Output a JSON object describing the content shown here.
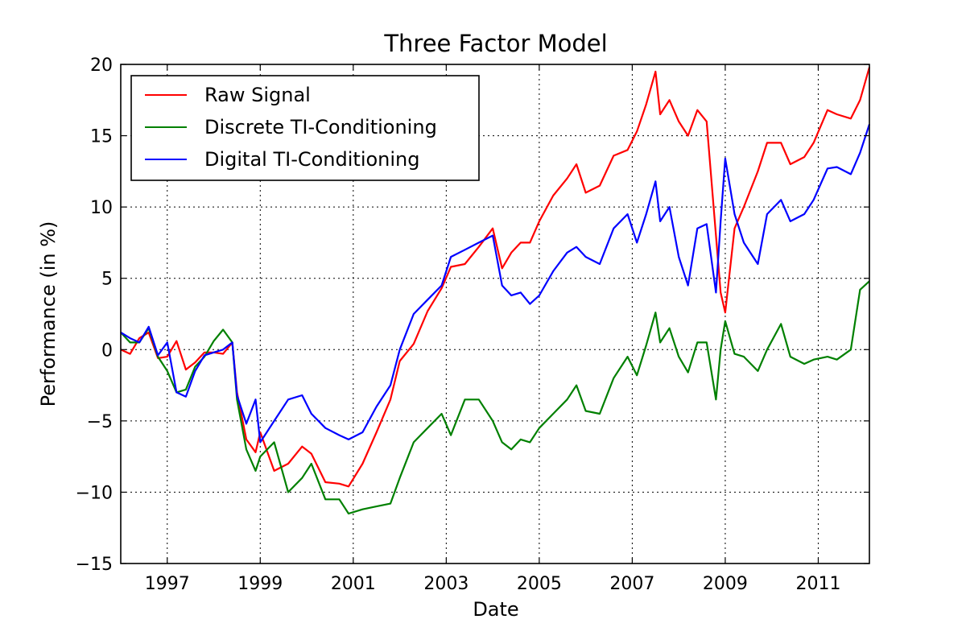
{
  "chart_data": {
    "type": "line",
    "title": "Three Factor Model",
    "xlabel": "Date",
    "ylabel": "Performance (in %)",
    "xlim": [
      1996.0,
      2012.1
    ],
    "ylim": [
      -15,
      20
    ],
    "xticks": [
      1997,
      1999,
      2001,
      2003,
      2005,
      2007,
      2009,
      2011
    ],
    "yticks": [
      -15,
      -10,
      -5,
      0,
      5,
      10,
      15,
      20
    ],
    "grid": true,
    "legend_position": "top-left",
    "x": [
      1996.0,
      1996.2,
      1996.4,
      1996.6,
      1996.8,
      1997.0,
      1997.2,
      1997.4,
      1997.6,
      1997.8,
      1998.0,
      1998.2,
      1998.4,
      1998.5,
      1998.7,
      1998.9,
      1999.0,
      1999.3,
      1999.6,
      1999.9,
      2000.1,
      2000.4,
      2000.7,
      2000.9,
      2001.2,
      2001.5,
      2001.8,
      2002.0,
      2002.3,
      2002.6,
      2002.9,
      2003.1,
      2003.4,
      2003.7,
      2004.0,
      2004.2,
      2004.4,
      2004.6,
      2004.8,
      2005.0,
      2005.3,
      2005.6,
      2005.8,
      2006.0,
      2006.3,
      2006.6,
      2006.9,
      2007.1,
      2007.3,
      2007.5,
      2007.6,
      2007.8,
      2008.0,
      2008.2,
      2008.4,
      2008.6,
      2008.8,
      2008.9,
      2009.0,
      2009.2,
      2009.4,
      2009.7,
      2009.9,
      2010.2,
      2010.4,
      2010.7,
      2010.9,
      2011.2,
      2011.4,
      2011.7,
      2011.9,
      2012.1
    ],
    "series": [
      {
        "name": "Raw Signal",
        "color": "#ff0000",
        "values": [
          0.0,
          -0.3,
          0.8,
          1.2,
          -0.6,
          -0.5,
          0.6,
          -1.4,
          -0.9,
          -0.2,
          -0.2,
          -0.3,
          0.5,
          -3.0,
          -6.3,
          -7.2,
          -5.8,
          -8.5,
          -8.0,
          -6.8,
          -7.3,
          -9.3,
          -9.4,
          -9.6,
          -8.0,
          -5.8,
          -3.5,
          -0.8,
          0.4,
          2.7,
          4.3,
          5.8,
          6.0,
          7.2,
          8.5,
          5.7,
          6.8,
          7.5,
          7.5,
          9.0,
          10.8,
          12.0,
          13.0,
          11.0,
          11.5,
          13.6,
          14.0,
          15.3,
          17.2,
          19.5,
          16.5,
          17.5,
          16.0,
          15.0,
          16.8,
          16.0,
          8.0,
          4.0,
          2.6,
          8.5,
          10.0,
          12.5,
          14.5,
          14.5,
          13.0,
          13.5,
          14.5,
          16.8,
          16.5,
          16.2,
          17.5,
          19.8
        ]
      },
      {
        "name": "Discrete TI-Conditioning",
        "color": "#008000",
        "values": [
          1.2,
          0.5,
          0.5,
          1.5,
          -0.5,
          -1.5,
          -3.0,
          -2.8,
          -1.2,
          -0.5,
          0.6,
          1.4,
          0.5,
          -3.5,
          -7.0,
          -8.5,
          -7.5,
          -6.5,
          -10.0,
          -9.0,
          -8.0,
          -10.5,
          -10.5,
          -11.5,
          -11.2,
          -11.0,
          -10.8,
          -9.0,
          -6.5,
          -5.5,
          -4.5,
          -6.0,
          -3.5,
          -3.5,
          -5.0,
          -6.5,
          -7.0,
          -6.3,
          -6.5,
          -5.5,
          -4.5,
          -3.5,
          -2.5,
          -4.3,
          -4.5,
          -2.0,
          -0.5,
          -1.8,
          0.3,
          2.6,
          0.5,
          1.5,
          -0.5,
          -1.6,
          0.5,
          0.5,
          -3.5,
          0.0,
          2.0,
          -0.3,
          -0.5,
          -1.5,
          0.0,
          1.8,
          -0.5,
          -1.0,
          -0.7,
          -0.5,
          -0.7,
          0.0,
          4.2,
          4.8
        ]
      },
      {
        "name": "Digital TI-Conditioning",
        "color": "#0000ff",
        "values": [
          1.2,
          0.8,
          0.5,
          1.6,
          -0.4,
          0.5,
          -3.0,
          -3.3,
          -1.5,
          -0.4,
          -0.2,
          0.0,
          0.5,
          -3.2,
          -5.2,
          -3.5,
          -6.5,
          -5.0,
          -3.5,
          -3.2,
          -4.5,
          -5.5,
          -6.0,
          -6.3,
          -5.8,
          -4.0,
          -2.5,
          0.0,
          2.5,
          3.5,
          4.5,
          6.5,
          7.0,
          7.5,
          8.0,
          4.5,
          3.8,
          4.0,
          3.2,
          3.8,
          5.5,
          6.8,
          7.2,
          6.5,
          6.0,
          8.5,
          9.5,
          7.5,
          9.5,
          11.8,
          9.0,
          10.0,
          6.5,
          4.5,
          8.5,
          8.8,
          4.0,
          9.0,
          13.4,
          9.5,
          7.5,
          6.0,
          9.5,
          10.5,
          9.0,
          9.5,
          10.5,
          12.7,
          12.8,
          12.3,
          13.8,
          15.8
        ]
      }
    ]
  }
}
